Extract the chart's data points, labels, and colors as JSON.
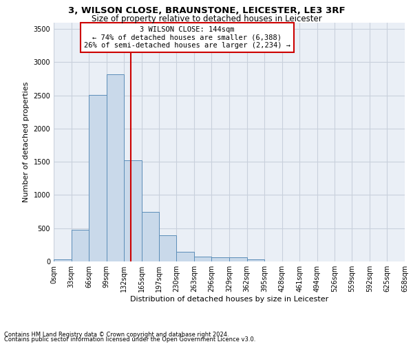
{
  "title1": "3, WILSON CLOSE, BRAUNSTONE, LEICESTER, LE3 3RF",
  "title2": "Size of property relative to detached houses in Leicester",
  "xlabel": "Distribution of detached houses by size in Leicester",
  "ylabel": "Number of detached properties",
  "annotation_line1": "3 WILSON CLOSE: 144sqm",
  "annotation_line2": "← 74% of detached houses are smaller (6,388)",
  "annotation_line3": "26% of semi-detached houses are larger (2,234) →",
  "bin_edges": [
    0,
    33,
    66,
    99,
    132,
    165,
    197,
    230,
    263,
    296,
    329,
    362,
    395,
    428,
    461,
    494,
    526,
    559,
    592,
    625,
    658
  ],
  "bin_labels": [
    "0sqm",
    "33sqm",
    "66sqm",
    "99sqm",
    "132sqm",
    "165sqm",
    "197sqm",
    "230sqm",
    "263sqm",
    "296sqm",
    "329sqm",
    "362sqm",
    "395sqm",
    "428sqm",
    "461sqm",
    "494sqm",
    "526sqm",
    "559sqm",
    "592sqm",
    "625sqm",
    "658sqm"
  ],
  "bar_heights": [
    30,
    480,
    2510,
    2820,
    1520,
    750,
    390,
    145,
    70,
    60,
    60,
    30,
    0,
    0,
    0,
    0,
    0,
    0,
    0,
    0
  ],
  "bar_color": "#c9d9ea",
  "bar_edgecolor": "#5b8db8",
  "vline_x": 144,
  "vline_color": "#cc0000",
  "annotation_box_color": "#cc0000",
  "ylim": [
    0,
    3600
  ],
  "yticks": [
    0,
    500,
    1000,
    1500,
    2000,
    2500,
    3000,
    3500
  ],
  "grid_color": "#c8d0dc",
  "bg_color": "#eaeff6",
  "footnote1": "Contains HM Land Registry data © Crown copyright and database right 2024.",
  "footnote2": "Contains public sector information licensed under the Open Government Licence v3.0.",
  "title_fontsize": 9.5,
  "subtitle_fontsize": 8.5,
  "tick_fontsize": 7,
  "ylabel_fontsize": 8,
  "xlabel_fontsize": 8,
  "footnote_fontsize": 6,
  "annot_fontsize": 7.5
}
